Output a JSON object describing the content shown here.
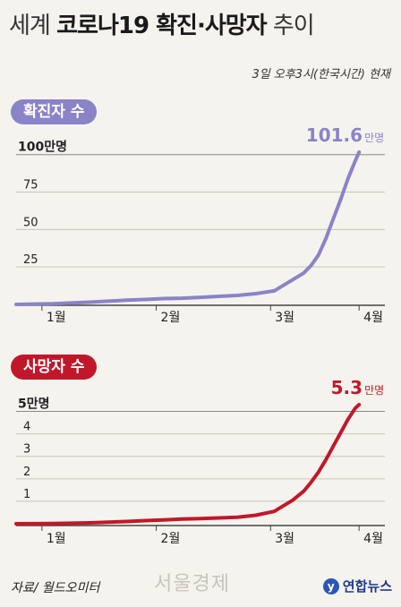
{
  "header": {
    "title_prefix": "세계",
    "title_main": "코로나19 확진·사망자",
    "title_suffix": "추이",
    "subtitle": "3일 오후3시(한국시간) 현재"
  },
  "footer": {
    "source": "자료/ 월드오미터",
    "watermark": "서울경제",
    "logo_text": "연합뉴스"
  },
  "colors": {
    "confirmed": "#8b83c7",
    "deaths": "#c0182a",
    "background": "#f5f3ee"
  },
  "chart_data": [
    {
      "type": "line",
      "title": "확진자 수",
      "series": [
        {
          "x": [
            0,
            10,
            20,
            30,
            35,
            40,
            45,
            50,
            55,
            60,
            65,
            70,
            72,
            75,
            78,
            80,
            82,
            84,
            86,
            88,
            90,
            92,
            93
          ],
          "values": [
            0,
            0.4,
            1.5,
            2.8,
            3.3,
            3.9,
            4.1,
            4.7,
            5.4,
            6.0,
            7.2,
            9.0,
            12,
            16.5,
            21,
            26,
            33,
            44,
            57,
            70,
            84,
            96,
            101.6
          ]
        }
      ],
      "y_ticks": [
        "25",
        "50",
        "75",
        "100만명"
      ],
      "y_tick_values": [
        25,
        50,
        75,
        100
      ],
      "ylim": [
        0,
        104
      ],
      "x_ticks": [
        "1월",
        "2월",
        "3월",
        "4월"
      ],
      "x_tick_values": [
        7,
        38,
        69,
        93
      ],
      "end_label_value": "101.6",
      "end_label_unit": "만명",
      "grid": true
    },
    {
      "type": "line",
      "title": "사망자 수",
      "series": [
        {
          "x": [
            0,
            10,
            20,
            30,
            35,
            40,
            45,
            50,
            55,
            60,
            65,
            70,
            72,
            75,
            78,
            80,
            82,
            84,
            86,
            88,
            90,
            92,
            93
          ],
          "values": [
            0,
            0.01,
            0.04,
            0.1,
            0.14,
            0.17,
            0.21,
            0.23,
            0.26,
            0.29,
            0.38,
            0.55,
            0.75,
            1.05,
            1.45,
            1.85,
            2.3,
            2.85,
            3.45,
            4.05,
            4.65,
            5.15,
            5.3
          ]
        }
      ],
      "y_ticks": [
        "1",
        "2",
        "3",
        "4",
        "5만명"
      ],
      "y_tick_values": [
        1,
        2,
        3,
        4,
        5
      ],
      "ylim": [
        0,
        5.5
      ],
      "x_ticks": [
        "1월",
        "2월",
        "3월",
        "4월"
      ],
      "x_tick_values": [
        7,
        38,
        69,
        93
      ],
      "end_label_value": "5.3",
      "end_label_unit": "만명",
      "grid": true
    }
  ]
}
